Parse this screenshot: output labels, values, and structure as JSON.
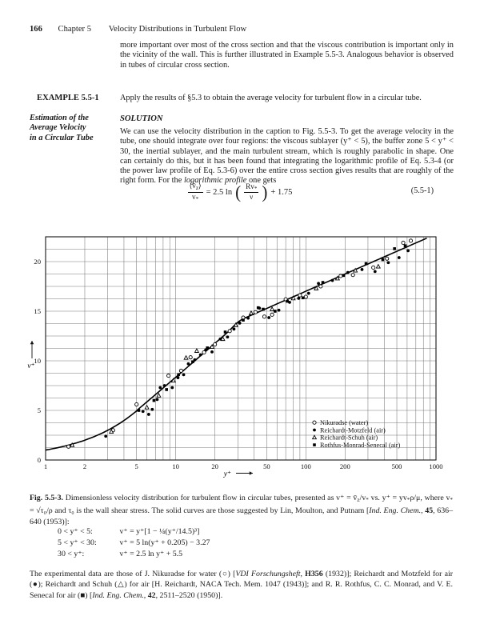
{
  "header": {
    "page_number": "166",
    "chapter": "Chapter 5",
    "title": "Velocity Distributions in Turbulent Flow"
  },
  "intro": {
    "text": "more important over most of the cross section and that the viscous contribution is important only in the vicinity of the wall. This is further illustrated in Example 5.5-3. Analogous behavior is observed in tubes of circular cross section."
  },
  "example": {
    "label": "EXAMPLE 5.5-1",
    "subtitle": "Estimation of the\nAverage Velocity\nin a Circular Tube",
    "prompt": "Apply the results of §5.3 to obtain the average velocity for turbulent flow in a circular tube."
  },
  "solution": {
    "heading": "SOLUTION",
    "text": [
      [
        "",
        "We can use the velocity distribution in the caption to Fig. 5.5-3. To get the average velocity in the tube, one should integrate over four regions: the viscous sublayer (y⁺ < 5), the buffer zone 5 < y⁺ < 30, the inertial sublayer, and the main turbulent stream, which is roughly parabolic in shape. One can certainly do this, but it has been found that integrating the logarithmic profile of Eq. 5.3-4 (or the power law profile of Eq. 5.3-6) over the entire cross section gives results that are roughly of the right form. For the "
      ],
      [
        "i",
        "logarithmic profile"
      ],
      [
        "",
        " one gets"
      ]
    ]
  },
  "equation": {
    "num_pre": "⟨v̄",
    "num_sub": "z",
    "num_post": "⟩",
    "den_main": "v",
    "den_sub": "*",
    "mid": "= 2.5 ln",
    "pnum_main": "Rv",
    "pnum_sub": "*",
    "pden": "ν",
    "tail": "+ 1.75",
    "tag": "(5.5-1)"
  },
  "caption": {
    "text": [
      [
        "b",
        "Fig. 5.5-3."
      ],
      [
        "",
        "  Dimensionless velocity distribution for turbulent flow in circular tubes, presented as v⁺ = v̄"
      ],
      [
        "sub",
        "z"
      ],
      [
        "",
        "/v"
      ],
      [
        "sub",
        "*"
      ],
      [
        "",
        " vs. y⁺ = yv"
      ],
      [
        "sub",
        "*"
      ],
      [
        "",
        "ρ/μ, where v"
      ],
      [
        "sub",
        "*"
      ],
      [
        "",
        " = √τ₀/ρ and τ₀ is the wall shear stress. The solid curves are those suggested by Lin, Moulton, and Putnam ["
      ],
      [
        "i",
        "Ind. Eng. Chem."
      ],
      [
        "",
        ", "
      ],
      [
        "b",
        "45"
      ],
      [
        "",
        ", 636–640 (1953)]:"
      ]
    ],
    "equations": [
      {
        "cond": "0 < y⁺ < 5:",
        "expr": "v⁺ = y⁺[1 − ¼(y⁺/14.5)³]"
      },
      {
        "cond": "5 < y⁺ < 30:",
        "expr": "v⁺ = 5 ln(y⁺ + 0.205) − 3.27"
      },
      {
        "cond": "30 < y⁺:",
        "expr": "v⁺ = 2.5 ln y⁺ + 5.5"
      }
    ]
  },
  "credits": {
    "text": [
      [
        "",
        "The experimental data are those of J. Nikuradse for water (○) ["
      ],
      [
        "i",
        "VDI Forschungsheft"
      ],
      [
        "",
        ", "
      ],
      [
        "b",
        "H356"
      ],
      [
        "",
        " (1932)]; Reichardt and Motzfeld for air (●); Reichardt and Schuh (△) for air [H. Reichardt, NACA Tech. Mem. 1047 (1943)]; and R. R. Rothfus, C. C. Monrad, and V. E. Senecal for air (■) ["
      ],
      [
        "i",
        "Ind. Eng. Chem."
      ],
      [
        "",
        ", "
      ],
      [
        "b",
        "42"
      ],
      [
        "",
        ", 2511–2520 (1950)]."
      ]
    ]
  },
  "chart_data": {
    "type": "scatter",
    "title": "Dimensionless velocity distribution for turbulent flow in circular tubes",
    "xlabel": "y⁺",
    "ylabel": "v⁺",
    "x_scale": "log",
    "xlim": [
      1,
      1000
    ],
    "ylim": [
      0,
      22.5
    ],
    "x_ticks": [
      1,
      2,
      5,
      10,
      20,
      50,
      100,
      200,
      500,
      1000
    ],
    "y_ticks": [
      0,
      5,
      10,
      15,
      20
    ],
    "y_grid_step": 1.25,
    "grid": "on",
    "legend_position": "inside-lower-right",
    "curve_description": "v+ = y+[1 - (1/4)(y+/14.5)^3] for y+<5; v+ = 5 ln(y+ + 0.205) - 3.27 for 5<y+<30; v+ = 2.5 ln y+ + 5.5 for y+>30",
    "curve_params": {
      "visc_limit": 5,
      "buffer_a": 5,
      "buffer_b": 0.205,
      "buffer_c": -3.27,
      "log_a": 2.5,
      "log_b": 5.5,
      "x_end": 850
    },
    "series": [
      {
        "id": "nikuradse-water",
        "label": "Nikuradse (water)",
        "marker": "circle-open",
        "points": [
          [
            1.5,
            1.35
          ],
          [
            3.3,
            3.0
          ],
          [
            5,
            5.6
          ],
          [
            8.8,
            8.5
          ],
          [
            11,
            9.0
          ],
          [
            13,
            10.35
          ],
          [
            16.5,
            10.85
          ],
          [
            20,
            11.65
          ],
          [
            26,
            13.0
          ],
          [
            33,
            14.35
          ],
          [
            41,
            14.9
          ],
          [
            48,
            14.45
          ],
          [
            55,
            14.65
          ],
          [
            70,
            16.2
          ],
          [
            90,
            16.6
          ],
          [
            100,
            16.45
          ],
          [
            130,
            17.5
          ],
          [
            185,
            18.55
          ],
          [
            230,
            18.65
          ],
          [
            330,
            19.4
          ],
          [
            420,
            20.3
          ],
          [
            560,
            21.9
          ],
          [
            640,
            22.1
          ]
        ]
      },
      {
        "id": "reichardt-motzfeld-air",
        "label": "Reichardt-Motzfeld (air)",
        "marker": "circle-filled",
        "points": [
          [
            2.9,
            2.4
          ],
          [
            5.6,
            4.9
          ],
          [
            6.2,
            4.6
          ],
          [
            6.6,
            5.1
          ],
          [
            7.2,
            6.1
          ],
          [
            7.6,
            7.3
          ],
          [
            8.2,
            7.5
          ],
          [
            9.4,
            7.3
          ],
          [
            10.4,
            8.3
          ],
          [
            11.5,
            8.6
          ],
          [
            12.5,
            9.7
          ],
          [
            14,
            10.1
          ],
          [
            15.5,
            10.6
          ],
          [
            17,
            11.1
          ],
          [
            19,
            10.9
          ],
          [
            22,
            12.2
          ],
          [
            25,
            12.4
          ],
          [
            28,
            13.2
          ],
          [
            31,
            13.8
          ],
          [
            36,
            14.3
          ],
          [
            44,
            15.3
          ],
          [
            52,
            14.35
          ],
          [
            62,
            15.1
          ],
          [
            75,
            15.9
          ],
          [
            88,
            16.3
          ],
          [
            105,
            16.8
          ],
          [
            125,
            17.8
          ],
          [
            160,
            18.1
          ],
          [
            210,
            18.9
          ],
          [
            270,
            19.2
          ],
          [
            340,
            19.0
          ],
          [
            430,
            19.9
          ],
          [
            520,
            20.4
          ],
          [
            610,
            21.1
          ]
        ]
      },
      {
        "id": "reichardt-schuh-air",
        "label": "Reichardt-Schuh (air)",
        "marker": "triangle-open",
        "points": [
          [
            1.6,
            1.5
          ],
          [
            3.2,
            2.85
          ],
          [
            6.0,
            5.3
          ],
          [
            7.4,
            6.5
          ],
          [
            9.6,
            8.0
          ],
          [
            12,
            10.3
          ],
          [
            14.5,
            11.0
          ],
          [
            19,
            11.4
          ],
          [
            23,
            12.2
          ],
          [
            29,
            13.6
          ],
          [
            38,
            14.8
          ],
          [
            55,
            15.2
          ],
          [
            80,
            16.3
          ],
          [
            120,
            17.3
          ],
          [
            175,
            18.3
          ],
          [
            240,
            19.1
          ],
          [
            360,
            19.5
          ]
        ]
      },
      {
        "id": "rothfus-monrad-senecal-air",
        "label": "Rothfus-Monrad-Senecal (air)",
        "marker": "square-filled",
        "points": [
          [
            5.2,
            5.0
          ],
          [
            6.8,
            6.0
          ],
          [
            8.5,
            7.1
          ],
          [
            10.5,
            8.6
          ],
          [
            13.5,
            9.9
          ],
          [
            17.5,
            11.3
          ],
          [
            24,
            12.9
          ],
          [
            33,
            14.1
          ],
          [
            43,
            15.35
          ],
          [
            47,
            15.2
          ],
          [
            58,
            15.0
          ],
          [
            72,
            16.0
          ],
          [
            95,
            16.35
          ],
          [
            135,
            17.9
          ],
          [
            195,
            18.6
          ],
          [
            290,
            19.8
          ],
          [
            390,
            20.2
          ],
          [
            480,
            21.3
          ],
          [
            580,
            21.6
          ]
        ]
      }
    ]
  }
}
